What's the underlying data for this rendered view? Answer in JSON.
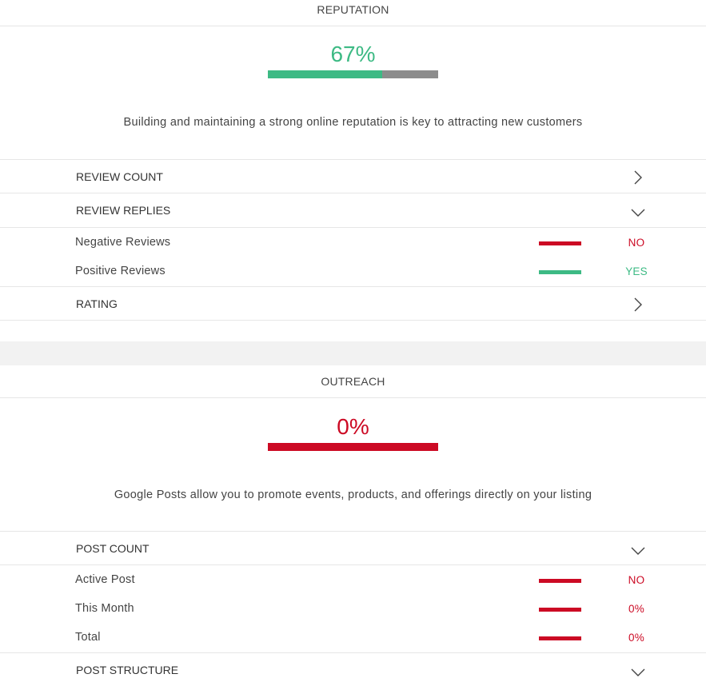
{
  "colors": {
    "green": "#3dba84",
    "red": "#cc0a24",
    "gray": "#8c8c8c"
  },
  "reputation": {
    "title": "REPUTATION",
    "score": "67%",
    "progress": 0.67,
    "description": "Building and maintaining a strong online reputation is key to attracting new customers",
    "rows": [
      {
        "label": "REVIEW COUNT",
        "icon": "chevron-right-icon"
      },
      {
        "label": "REVIEW REPLIES",
        "icon": "chevron-down-icon"
      },
      {
        "label": "RATING",
        "icon": "chevron-right-icon"
      }
    ],
    "review_replies_items": [
      {
        "label": "Negative Reviews",
        "value": "NO",
        "status": "red"
      },
      {
        "label": "Positive Reviews",
        "value": "YES",
        "status": "green"
      }
    ]
  },
  "outreach": {
    "title": "OUTREACH",
    "score": "0%",
    "progress": 0,
    "description": "Google Posts allow you to promote events, products, and offerings directly on your listing",
    "rows": [
      {
        "label": "POST COUNT",
        "icon": "chevron-down-icon"
      },
      {
        "label": "POST STRUCTURE",
        "icon": "chevron-down-icon"
      }
    ],
    "post_count_items": [
      {
        "label": "Active Post",
        "value": "NO",
        "status": "red"
      },
      {
        "label": "This Month",
        "value": "0%",
        "status": "red"
      },
      {
        "label": "Total",
        "value": "0%",
        "status": "red"
      }
    ]
  }
}
